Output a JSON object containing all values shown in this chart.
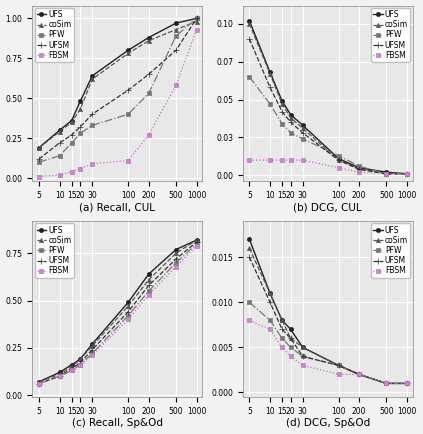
{
  "x_vals": [
    5,
    10,
    15,
    20,
    30,
    100,
    200,
    500,
    1000
  ],
  "x_labels": [
    "5",
    "10",
    "15",
    "20",
    "30",
    "100",
    "200",
    "500",
    "1000"
  ],
  "plot_a": {
    "title": "(a) Recall, CUL",
    "ylim": [
      -0.02,
      1.08
    ],
    "yticks": [
      0.0,
      0.25,
      0.5,
      0.75,
      1.0
    ],
    "legend_loc": "upper left",
    "UFS": [
      0.19,
      0.3,
      0.36,
      0.48,
      0.64,
      0.8,
      0.88,
      0.97,
      1.0
    ],
    "coSim": [
      0.19,
      0.29,
      0.35,
      0.43,
      0.62,
      0.78,
      0.86,
      0.93,
      0.98
    ],
    "PFW": [
      0.1,
      0.14,
      0.22,
      0.28,
      0.33,
      0.4,
      0.53,
      0.89,
      1.0
    ],
    "UFSM": [
      0.12,
      0.22,
      0.27,
      0.32,
      0.4,
      0.55,
      0.65,
      0.8,
      1.0
    ],
    "FBSM": [
      0.01,
      0.02,
      0.04,
      0.06,
      0.09,
      0.11,
      0.27,
      0.58,
      0.93
    ]
  },
  "plot_b": {
    "title": "(b) DCG, CUL",
    "ylim": [
      -0.004,
      0.112
    ],
    "yticks": [
      0.0,
      0.025,
      0.05,
      0.075,
      0.1
    ],
    "legend_loc": "upper right",
    "UFS": [
      0.102,
      0.068,
      0.049,
      0.04,
      0.033,
      0.011,
      0.005,
      0.002,
      0.001
    ],
    "coSim": [
      0.1,
      0.067,
      0.047,
      0.038,
      0.031,
      0.01,
      0.004,
      0.001,
      0.001
    ],
    "PFW": [
      0.065,
      0.047,
      0.034,
      0.028,
      0.024,
      0.013,
      0.006,
      0.001,
      0.001
    ],
    "UFSM": [
      0.09,
      0.058,
      0.042,
      0.035,
      0.028,
      0.01,
      0.004,
      0.001,
      0.001
    ],
    "FBSM": [
      0.01,
      0.01,
      0.01,
      0.01,
      0.01,
      0.005,
      0.002,
      0.001,
      0.001
    ]
  },
  "plot_c": {
    "title": "(c) Recall, Sp&Od",
    "ylim": [
      -0.01,
      0.92
    ],
    "yticks": [
      0.0,
      0.25,
      0.5,
      0.75
    ],
    "legend_loc": "upper left",
    "UFS": [
      0.07,
      0.12,
      0.16,
      0.19,
      0.27,
      0.49,
      0.64,
      0.77,
      0.82
    ],
    "coSim": [
      0.07,
      0.11,
      0.15,
      0.19,
      0.26,
      0.47,
      0.61,
      0.75,
      0.82
    ],
    "PFW": [
      0.06,
      0.1,
      0.13,
      0.16,
      0.22,
      0.42,
      0.55,
      0.7,
      0.8
    ],
    "UFSM": [
      0.06,
      0.1,
      0.14,
      0.17,
      0.24,
      0.44,
      0.58,
      0.72,
      0.81
    ],
    "FBSM": [
      0.06,
      0.1,
      0.13,
      0.16,
      0.21,
      0.4,
      0.53,
      0.68,
      0.79
    ]
  },
  "plot_d": {
    "title": "(d) DCG, Sp&Od",
    "ylim": [
      -0.0005,
      0.019
    ],
    "yticks": [
      0.0,
      0.005,
      0.01,
      0.015
    ],
    "legend_loc": "upper right",
    "UFS": [
      0.017,
      0.011,
      0.008,
      0.007,
      0.005,
      0.003,
      0.002,
      0.001,
      0.001
    ],
    "coSim": [
      0.016,
      0.011,
      0.008,
      0.006,
      0.005,
      0.003,
      0.002,
      0.001,
      0.001
    ],
    "PFW": [
      0.01,
      0.008,
      0.006,
      0.005,
      0.004,
      0.003,
      0.002,
      0.001,
      0.001
    ],
    "UFSM": [
      0.015,
      0.01,
      0.007,
      0.006,
      0.004,
      0.003,
      0.002,
      0.001,
      0.001
    ],
    "FBSM": [
      0.008,
      0.007,
      0.005,
      0.004,
      0.003,
      0.002,
      0.002,
      0.001,
      0.001
    ]
  },
  "series_styles": {
    "UFS": {
      "color": "#222222",
      "marker": "o",
      "linestyle": "-",
      "markersize": 3,
      "linewidth": 1.0
    },
    "coSim": {
      "color": "#555555",
      "marker": "^",
      "linestyle": "--",
      "markersize": 3,
      "linewidth": 0.9
    },
    "PFW": {
      "color": "#777777",
      "marker": "s",
      "linestyle": "-.",
      "markersize": 3,
      "linewidth": 0.9
    },
    "UFSM": {
      "color": "#333333",
      "marker": "+",
      "linestyle": "--",
      "markersize": 4,
      "linewidth": 0.9
    },
    "FBSM": {
      "color": "#bb77bb",
      "marker": "s",
      "linestyle": ":",
      "markersize": 3,
      "linewidth": 0.9
    }
  },
  "bg_color": "#e8e8e8",
  "grid_color": "#ffffff",
  "fig_bg": "#f2f2f2",
  "legend_fontsize": 5.5,
  "tick_fontsize": 5.5,
  "title_fontsize": 7.5
}
